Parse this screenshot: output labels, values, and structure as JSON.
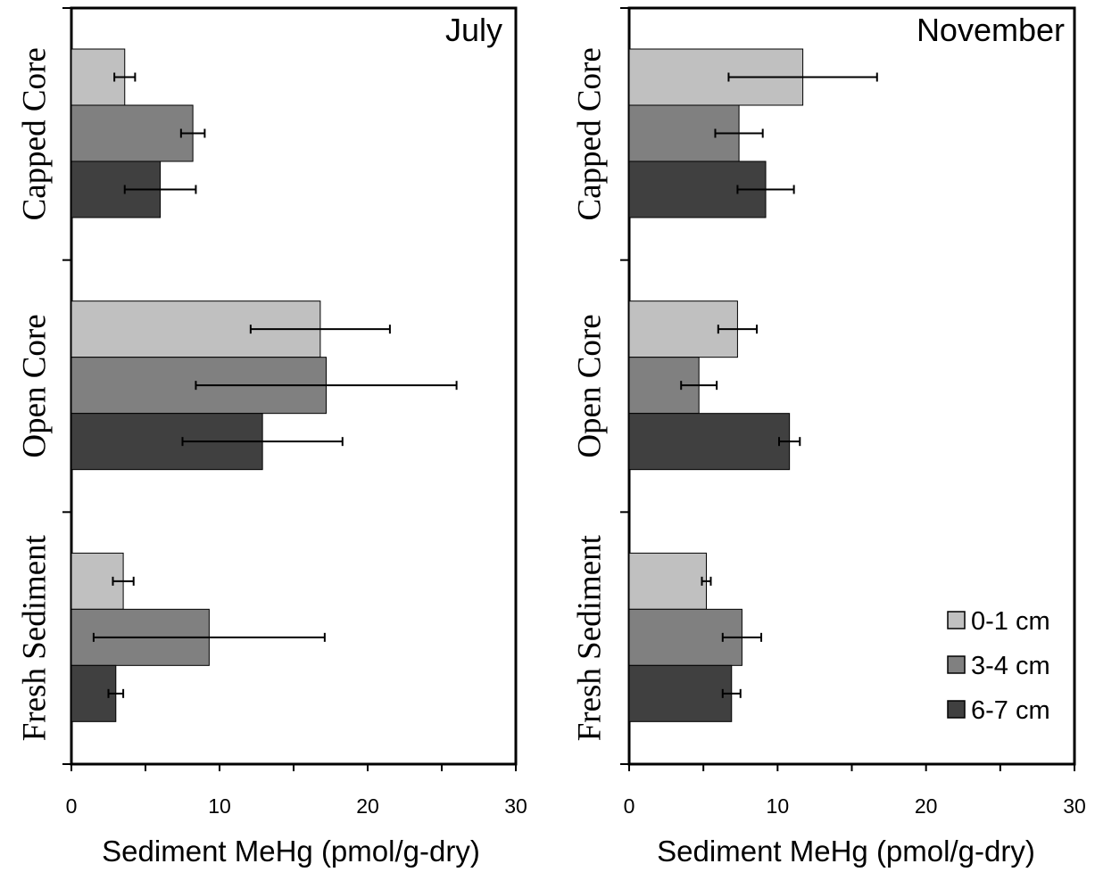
{
  "chart_data": [
    {
      "type": "bar",
      "orientation": "horizontal",
      "title": "July",
      "xlabel": "Sediment MeHg (pmol/g-dry)",
      "ylabel": "",
      "xlim": [
        0,
        30
      ],
      "xticks": [
        0,
        10,
        20,
        30
      ],
      "categories": [
        "Capped Core",
        "Open Core",
        "Fresh Sediment"
      ],
      "series": [
        {
          "name": "0-1 cm",
          "color": "#c0c0c0",
          "values": [
            3.6,
            16.8,
            3.5
          ],
          "error": [
            0.7,
            4.7,
            0.7
          ]
        },
        {
          "name": "3-4 cm",
          "color": "#808080",
          "values": [
            8.2,
            17.2,
            9.3
          ],
          "error": [
            0.8,
            8.8,
            7.8
          ]
        },
        {
          "name": "6-7 cm",
          "color": "#404040",
          "values": [
            6.0,
            12.9,
            3.0
          ],
          "error": [
            2.4,
            5.4,
            0.5
          ]
        }
      ],
      "grid": false,
      "legend": "none"
    },
    {
      "type": "bar",
      "orientation": "horizontal",
      "title": "November",
      "xlabel": "Sediment MeHg (pmol/g-dry)",
      "ylabel": "",
      "xlim": [
        0,
        30
      ],
      "xticks": [
        0,
        10,
        20,
        30
      ],
      "categories": [
        "Capped Core",
        "Open Core",
        "Fresh Sediment"
      ],
      "series": [
        {
          "name": "0-1 cm",
          "color": "#c0c0c0",
          "values": [
            11.7,
            7.3,
            5.2
          ],
          "error": [
            5.0,
            1.3,
            0.3
          ]
        },
        {
          "name": "3-4 cm",
          "color": "#808080",
          "values": [
            7.4,
            4.7,
            7.6
          ],
          "error": [
            1.6,
            1.2,
            1.3
          ]
        },
        {
          "name": "6-7 cm",
          "color": "#404040",
          "values": [
            9.2,
            10.8,
            6.9
          ],
          "error": [
            1.9,
            0.7,
            0.6
          ]
        }
      ],
      "grid": false,
      "legend": "bottom-right"
    }
  ]
}
